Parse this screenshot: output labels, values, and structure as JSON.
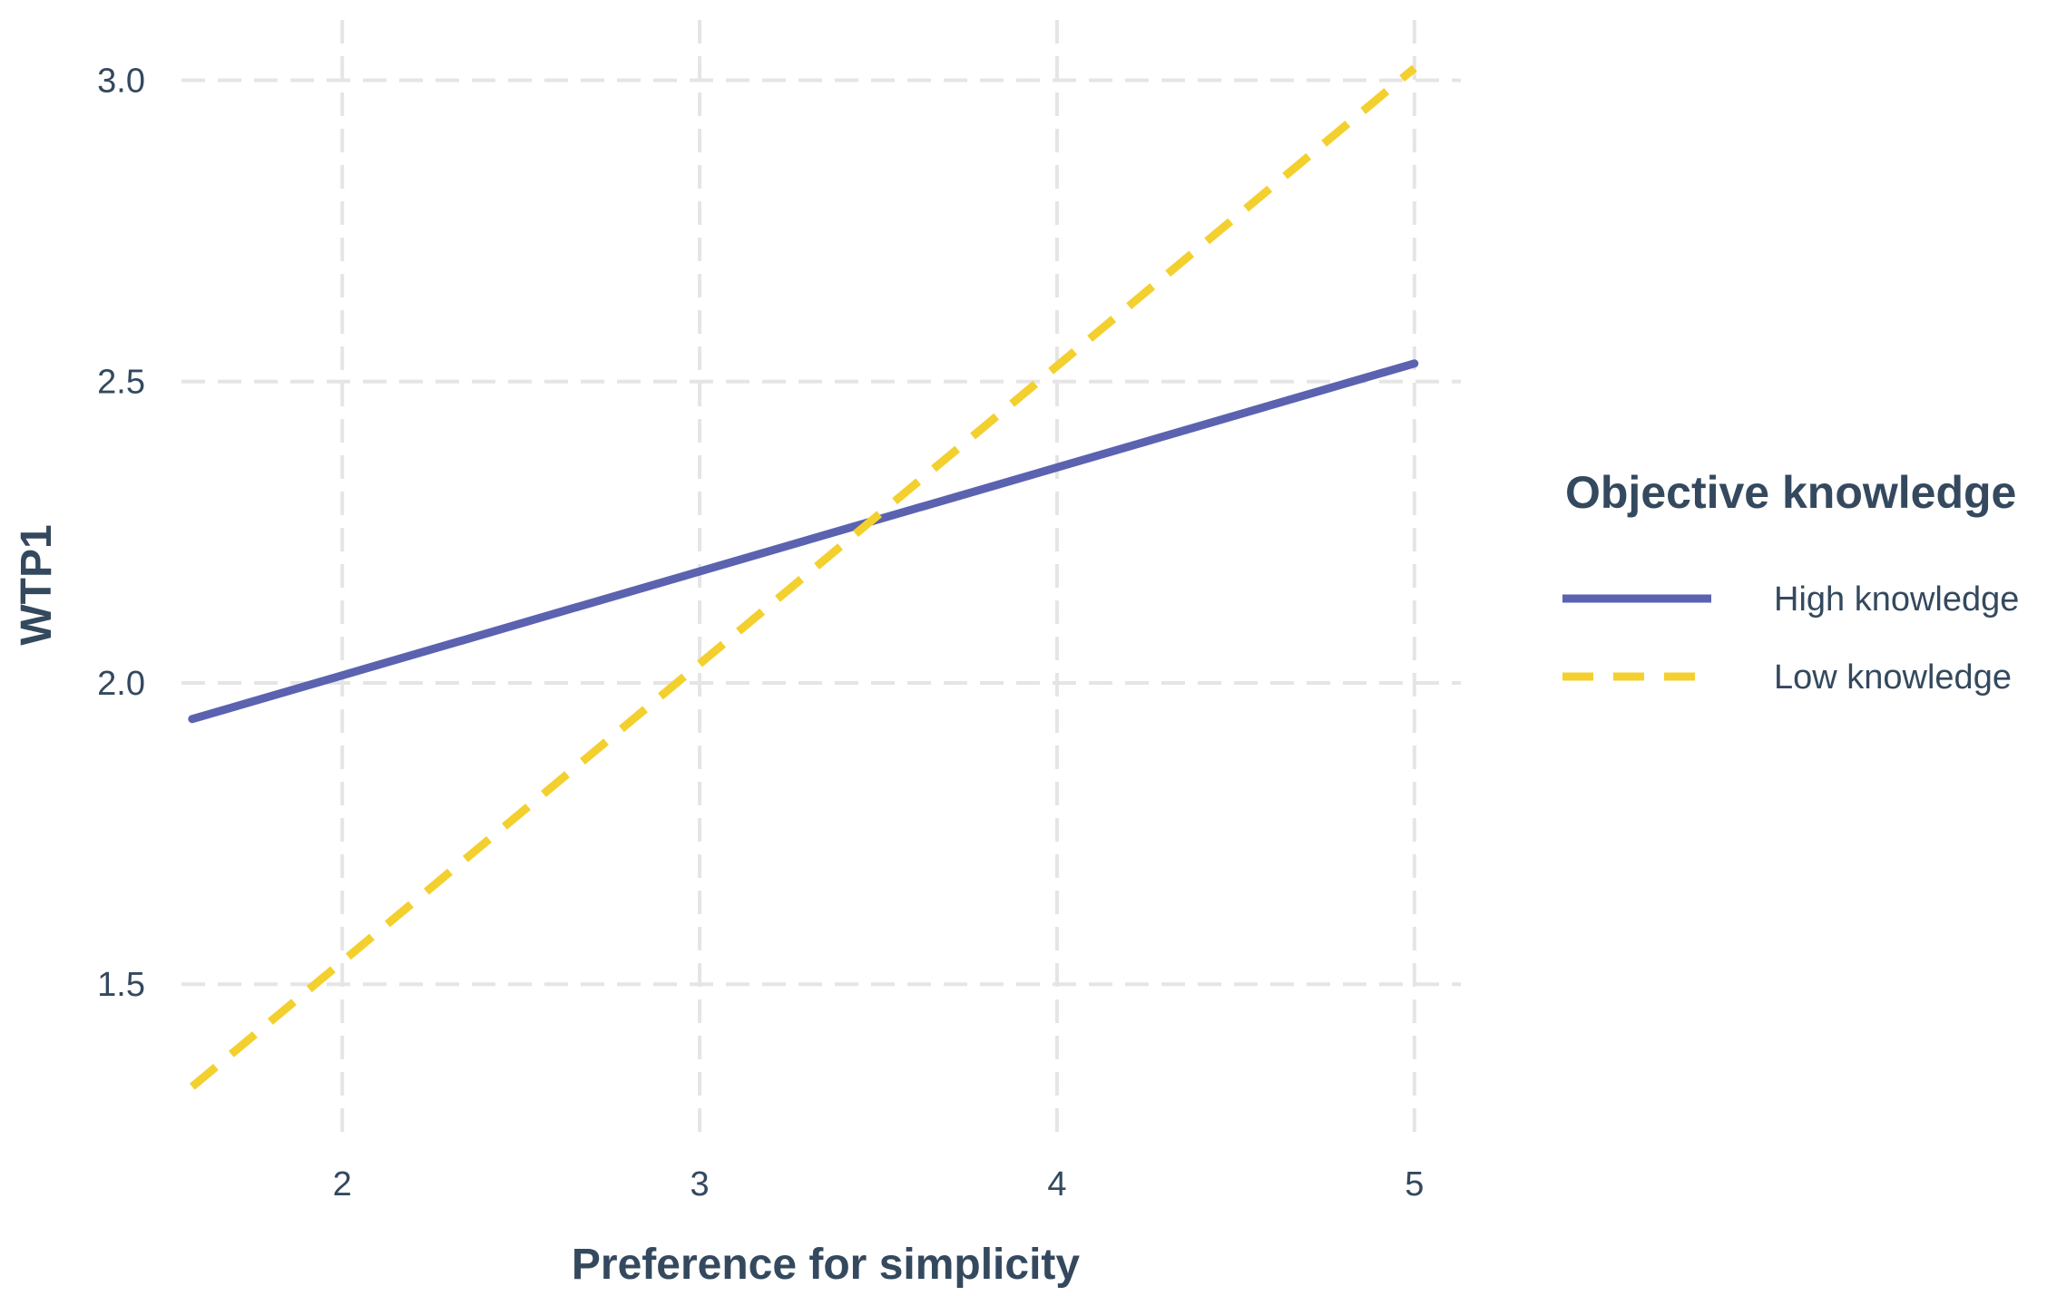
{
  "chart_data": {
    "type": "line",
    "title": "",
    "xlabel": "Preference for simplicity",
    "ylabel": "WTP1",
    "xlim": [
      1.55,
      5.13
    ],
    "ylim": [
      1.24,
      3.1
    ],
    "x_ticks": [
      2,
      3,
      4,
      5
    ],
    "x_tick_labels": [
      "2",
      "3",
      "4",
      "5"
    ],
    "y_ticks": [
      1.5,
      2.0,
      2.5,
      3.0
    ],
    "y_tick_labels": [
      "1.5",
      "2.0",
      "2.5",
      "3.0"
    ],
    "grid": true,
    "legend": {
      "title": "Objective knowledge",
      "position": "right"
    },
    "series": [
      {
        "name": "High knowledge",
        "color": "#5b62b0",
        "line_style": "solid",
        "x": [
          1.58,
          5.0
        ],
        "y": [
          1.94,
          2.53
        ]
      },
      {
        "name": "Low knowledge",
        "color": "#f3d02e",
        "line_style": "dashed",
        "x": [
          1.58,
          5.0
        ],
        "y": [
          1.33,
          3.02
        ]
      }
    ]
  }
}
